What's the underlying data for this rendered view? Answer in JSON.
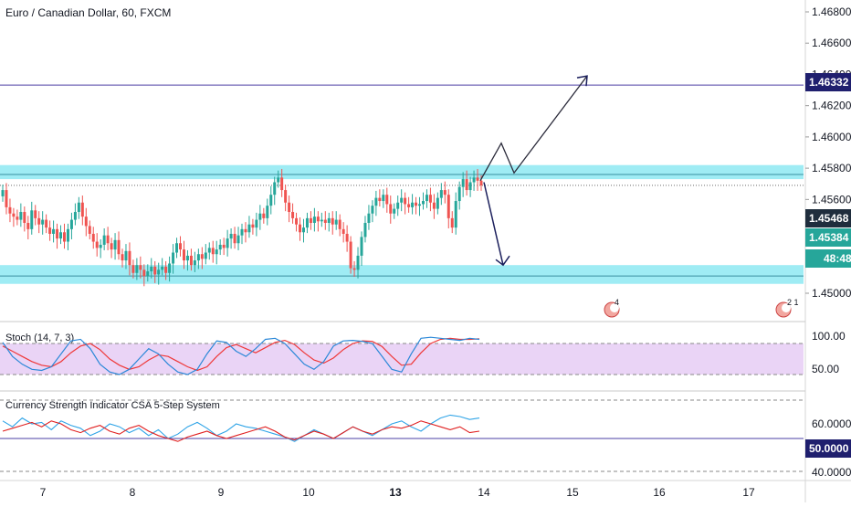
{
  "header": {
    "title": "Euro / Canadian Dollar, 60, FXCM"
  },
  "colors": {
    "up": "#26a69a",
    "down": "#ef5350",
    "zone": "#7fe5f0",
    "zone_line": "#3a8fa0",
    "horizontal": "#4b3fa5",
    "arrow": "#1b1f5c",
    "stoch_band": "#e8cff5",
    "stoch_k": "#2b88d8",
    "stoch_d": "#ef3838",
    "csa_blue": "#2fa4e7",
    "csa_red": "#e02020",
    "label_navy": "#1f1f6e",
    "label_green": "#26a69a",
    "label_dark": "#1f2d3d"
  },
  "price_labels": {
    "resistance_line": "1.46332",
    "price_1": "1.45468",
    "price_2": "1.45384",
    "countdown": "48:48",
    "csa_mid": "50.0000"
  },
  "event_markers": {
    "first": "4",
    "second": "2 1"
  },
  "stoch": {
    "title": "Stoch (14, 7, 3)",
    "ticks": [
      "100.00",
      "50.00"
    ]
  },
  "csa": {
    "title": "Currency Strength Indicator CSA 5-Step System",
    "ticks": [
      "60.0000",
      "40.0000"
    ]
  },
  "x_axis": {
    "ticks": [
      "7",
      "8",
      "9",
      "10",
      "13",
      "14",
      "15",
      "16",
      "17"
    ]
  },
  "chart_data": {
    "type": "candlestick",
    "title": "Euro / Canadian Dollar, 60, FXCM",
    "price_axis": {
      "ticks": [
        1.468,
        1.466,
        1.4644,
        1.462,
        1.46,
        1.458,
        1.456,
        1.4546,
        1.4538,
        1.452,
        1.45
      ],
      "range": [
        1.4491,
        1.4692
      ]
    },
    "price_tick_labels": [
      "1.46800",
      "1.46600",
      "1.46400",
      "1.46200",
      "1.46000",
      "1.45800",
      "1.45600",
      "1.45000"
    ],
    "horizontal_line": 1.46332,
    "resistance_zone": {
      "low": 1.4573,
      "high": 1.4582,
      "line": 1.4576
    },
    "support_zone": {
      "low": 1.4506,
      "high": 1.4518,
      "line": 1.4511
    },
    "dotted_level": 1.4569,
    "closes": [
      1.4566,
      1.4555,
      1.4551,
      1.4549,
      1.4547,
      1.4552,
      1.4545,
      1.4541,
      1.4553,
      1.4548,
      1.4544,
      1.4547,
      1.4542,
      1.4538,
      1.4541,
      1.4535,
      1.4539,
      1.4533,
      1.4541,
      1.4547,
      1.4552,
      1.4558,
      1.4549,
      1.4543,
      1.4538,
      1.4533,
      1.4529,
      1.4531,
      1.4537,
      1.4532,
      1.4528,
      1.4534,
      1.4525,
      1.4521,
      1.4527,
      1.4518,
      1.4513,
      1.4518,
      1.4515,
      1.4511,
      1.4514,
      1.4517,
      1.4512,
      1.4515,
      1.4517,
      1.4513,
      1.4519,
      1.4526,
      1.4532,
      1.4528,
      1.4521,
      1.4524,
      1.4518,
      1.4521,
      1.4525,
      1.4522,
      1.4526,
      1.4529,
      1.4525,
      1.4528,
      1.4531,
      1.4529,
      1.4535,
      1.4538,
      1.4532,
      1.4537,
      1.4541,
      1.4539,
      1.4544,
      1.4542,
      1.4547,
      1.4551,
      1.4548,
      1.4556,
      1.4563,
      1.4571,
      1.4574,
      1.4566,
      1.4558,
      1.4552,
      1.4548,
      1.4544,
      1.4539,
      1.4542,
      1.4548,
      1.4545,
      1.4549,
      1.4546,
      1.4547,
      1.4545,
      1.4548,
      1.4544,
      1.4547,
      1.4541,
      1.4538,
      1.4533,
      1.4516,
      1.4515,
      1.4524,
      1.4536,
      1.4545,
      1.4551,
      1.4556,
      1.4561,
      1.4559,
      1.4563,
      1.4557,
      1.4551,
      1.4554,
      1.4558,
      1.4561,
      1.4557,
      1.4555,
      1.4558,
      1.4556,
      1.4557,
      1.4559,
      1.4563,
      1.4558,
      1.4554,
      1.4561,
      1.4566,
      1.4563,
      1.4548,
      1.4542,
      1.4559,
      1.4568,
      1.4573,
      1.4566,
      1.4571,
      1.4574,
      1.4572,
      1.4569
    ],
    "projection_up": [
      [
        1.4572,
        1.4596,
        1.4577,
        1.4639
      ]
    ],
    "projection_down": [
      1.4571,
      1.4518
    ],
    "stoch_k": [
      82,
      55,
      40,
      30,
      28,
      35,
      60,
      85,
      88,
      70,
      40,
      25,
      20,
      30,
      50,
      70,
      60,
      40,
      25,
      20,
      30,
      60,
      85,
      82,
      65,
      55,
      70,
      88,
      90,
      80,
      60,
      40,
      30,
      45,
      75,
      85,
      86,
      84,
      80,
      55,
      30,
      25,
      60,
      90,
      92,
      90,
      88,
      86,
      90,
      88
    ],
    "stoch_d": [
      75,
      65,
      55,
      45,
      38,
      35,
      45,
      62,
      75,
      80,
      68,
      50,
      38,
      30,
      35,
      48,
      58,
      55,
      45,
      35,
      28,
      35,
      55,
      72,
      78,
      70,
      62,
      72,
      82,
      86,
      78,
      62,
      48,
      42,
      52,
      68,
      80,
      85,
      84,
      74,
      55,
      38,
      40,
      62,
      80,
      88,
      90,
      88,
      88,
      89
    ],
    "csa_blue": [
      62,
      58,
      64,
      60,
      61,
      56,
      62,
      59,
      57,
      52,
      55,
      60,
      58,
      54,
      57,
      52,
      56,
      50,
      53,
      58,
      61,
      57,
      52,
      55,
      60,
      58,
      57,
      55,
      53,
      51,
      48,
      52,
      56,
      53,
      50,
      54,
      58,
      55,
      52,
      56,
      60,
      62,
      58,
      55,
      60,
      64,
      66,
      65,
      63,
      64
    ],
    "csa_red": [
      55,
      57,
      59,
      61,
      58,
      62,
      60,
      56,
      54,
      57,
      59,
      55,
      53,
      57,
      59,
      55,
      52,
      50,
      48,
      51,
      53,
      55,
      52,
      50,
      52,
      54,
      56,
      58,
      55,
      51,
      49,
      52,
      55,
      53,
      50,
      54,
      58,
      55,
      53,
      56,
      58,
      57,
      59,
      62,
      60,
      58,
      56,
      58,
      54,
      55
    ],
    "csa_axis": {
      "range": [
        38,
        72
      ],
      "mid": 50
    },
    "stoch_axis": {
      "range": [
        30,
        115
      ],
      "band": [
        20,
        80
      ]
    }
  }
}
